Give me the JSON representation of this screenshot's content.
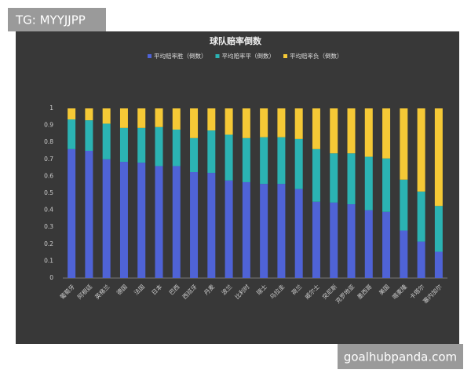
{
  "tag": "TG: MYYJJPP",
  "watermark": "goalhubpanda.com",
  "chart_data": {
    "type": "bar",
    "stacked": true,
    "title": "球队赔率倒数",
    "categories": [
      "葡萄牙",
      "阿根廷",
      "英格兰",
      "德国",
      "法国",
      "日本",
      "巴西",
      "西班牙",
      "丹麦",
      "波兰",
      "比利时",
      "瑞士",
      "乌拉圭",
      "荷兰",
      "威尔士",
      "突尼斯",
      "克罗地亚",
      "墨西哥",
      "美国",
      "喀麦隆",
      "卡塔尔",
      "塞内加尔"
    ],
    "series": [
      {
        "name": "平均赔率胜（倒数）",
        "color": "#4f63d6",
        "values": [
          0.76,
          0.75,
          0.7,
          0.685,
          0.68,
          0.66,
          0.66,
          0.625,
          0.62,
          0.575,
          0.565,
          0.555,
          0.555,
          0.525,
          0.45,
          0.445,
          0.435,
          0.4,
          0.39,
          0.28,
          0.215,
          0.155
        ]
      },
      {
        "name": "平均赔率平（倒数）",
        "color": "#2bb3b3",
        "values": [
          0.175,
          0.18,
          0.21,
          0.2,
          0.205,
          0.23,
          0.215,
          0.2,
          0.25,
          0.27,
          0.26,
          0.275,
          0.275,
          0.295,
          0.31,
          0.29,
          0.3,
          0.315,
          0.315,
          0.3,
          0.295,
          0.27
        ]
      },
      {
        "name": "平均赔率负（倒数）",
        "color": "#f5c936",
        "values": [
          0.065,
          0.07,
          0.09,
          0.115,
          0.115,
          0.11,
          0.125,
          0.175,
          0.13,
          0.155,
          0.175,
          0.17,
          0.17,
          0.18,
          0.24,
          0.265,
          0.265,
          0.285,
          0.295,
          0.42,
          0.49,
          0.575
        ]
      }
    ],
    "ylim": [
      0,
      1
    ],
    "yticks": [
      0,
      0.1,
      0.2,
      0.3,
      0.4,
      0.5,
      0.6,
      0.7,
      0.8,
      0.9,
      1
    ],
    "grid": false,
    "legend": "top"
  }
}
